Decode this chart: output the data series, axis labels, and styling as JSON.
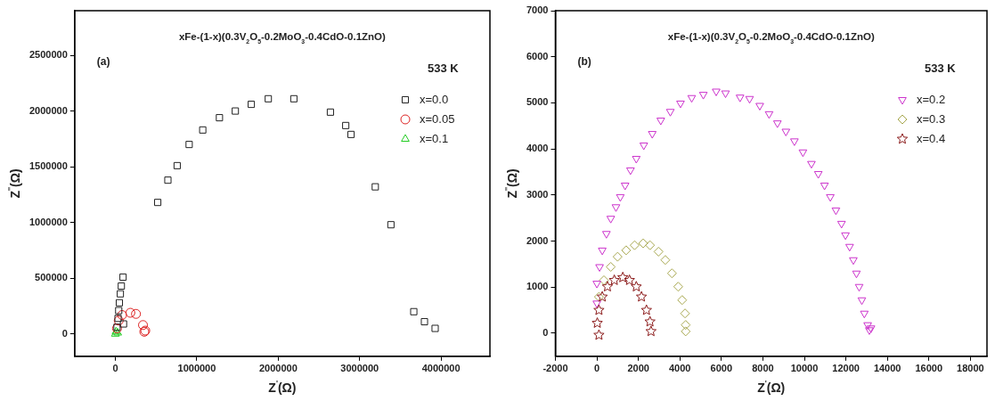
{
  "chart_data": [
    {
      "type": "scatter",
      "title": "xFe-(1-x)(0.3V$_{2}$O$_{5}$-0.2MoO$_{3}$-0.4CdO-0.1ZnO)",
      "xlabel": "Z$^{'}$(Ω)",
      "ylabel": "Z$^{''}$(Ω)",
      "annotations": [
        "(a)",
        "533 K"
      ],
      "xlim": [
        -500000,
        4600000
      ],
      "xticks": [
        0,
        1000000,
        2000000,
        3000000,
        4000000
      ],
      "ylim": [
        -200000,
        2900000
      ],
      "yticks": [
        0,
        500000,
        1000000,
        1500000,
        2000000,
        2500000
      ],
      "grid": false,
      "legend": "top right",
      "series": [
        {
          "name": "x=0.0",
          "color": "#222222",
          "marker": "square",
          "x": [
            20000,
            33000,
            41000,
            49000,
            61000,
            73000,
            94000,
            100000,
            520000,
            645000,
            759000,
            906000,
            1073000,
            1278000,
            1473000,
            1669000,
            1878000,
            2192000,
            2641000,
            2829000,
            2894000,
            3192000,
            3384000,
            3665000,
            3796000,
            3927000
          ],
          "values": [
            60000,
            140000,
            210000,
            280000,
            360000,
            430000,
            510000,
            90000,
            1180000,
            1380000,
            1510000,
            1700000,
            1830000,
            1940000,
            2000000,
            2060000,
            2110000,
            2110000,
            1990000,
            1870000,
            1790000,
            1320000,
            980000,
            200000,
            110000,
            50000
          ]
        },
        {
          "name": "x=0.05",
          "color": "#dd2222",
          "marker": "circle",
          "x": [
            20000,
            41000,
            82000,
            184000,
            253000,
            339000,
            367000,
            355000
          ],
          "values": [
            50000,
            120000,
            170000,
            190000,
            180000,
            80000,
            30000,
            20000
          ]
        },
        {
          "name": "x=0.1",
          "color": "#22cc22",
          "marker": "triangle",
          "x": [
            0,
            8000,
            29000
          ],
          "values": [
            0,
            20000,
            10000
          ]
        }
      ]
    },
    {
      "type": "scatter",
      "title": "xFe-(1-x)(0.3V$_{2}$O$_{5}$-0.2MoO$_{3}$-0.4CdO-0.1ZnO)",
      "xlabel": "Z$^{'}$(Ω)",
      "ylabel": "Z$^{''}$(Ω)",
      "annotations": [
        "(b)",
        "533 K"
      ],
      "xlim": [
        -2000,
        18800
      ],
      "xticks": [
        -2000,
        0,
        2000,
        4000,
        6000,
        8000,
        10000,
        12000,
        14000,
        16000,
        18000
      ],
      "ylim": [
        -500,
        7000
      ],
      "yticks": [
        0,
        1000,
        2000,
        3000,
        4000,
        5000,
        6000,
        7000
      ],
      "grid": false,
      "legend": "top right",
      "series": [
        {
          "name": "x=0.2",
          "color": "#cc33cc",
          "marker": "triangle-down",
          "x": [
            0,
            0,
            130,
            260,
            460,
            670,
            920,
            1130,
            1360,
            1620,
            1900,
            2260,
            2670,
            3080,
            3540,
            4030,
            4570,
            5130,
            5750,
            6200,
            6900,
            7360,
            7850,
            8300,
            8700,
            9110,
            9520,
            9930,
            10340,
            10670,
            10970,
            11250,
            11520,
            11790,
            11980,
            12180,
            12360,
            12510,
            12640,
            12770,
            12890,
            13050,
            13130,
            13210
          ],
          "values": [
            650,
            1080,
            1440,
            1800,
            2160,
            2490,
            2740,
            2960,
            3210,
            3540,
            3790,
            4080,
            4330,
            4620,
            4810,
            4990,
            5110,
            5180,
            5250,
            5210,
            5120,
            5090,
            4940,
            4760,
            4560,
            4380,
            4170,
            3930,
            3680,
            3460,
            3210,
            2960,
            2670,
            2380,
            2130,
            1880,
            1590,
            1300,
            1010,
            720,
            430,
            180,
            70,
            110
          ]
        },
        {
          "name": "x=0.3",
          "color": "#a8a850",
          "marker": "diamond",
          "x": [
            100,
            340,
            670,
            1000,
            1410,
            1820,
            2230,
            2560,
            2970,
            3300,
            3620,
            3920,
            4110,
            4250,
            4280,
            4280
          ],
          "values": [
            790,
            1150,
            1440,
            1660,
            1800,
            1910,
            1950,
            1910,
            1770,
            1590,
            1300,
            1010,
            720,
            430,
            180,
            40
          ]
        },
        {
          "name": "x=0.4",
          "color": "#8b1a1a",
          "marker": "star",
          "x": [
            100,
            20,
            100,
            260,
            510,
            840,
            1250,
            1570,
            1900,
            2150,
            2390,
            2560,
            2610
          ],
          "values": [
            -40,
            220,
            500,
            790,
            1010,
            1150,
            1210,
            1150,
            1010,
            790,
            500,
            250,
            40
          ]
        }
      ]
    }
  ]
}
